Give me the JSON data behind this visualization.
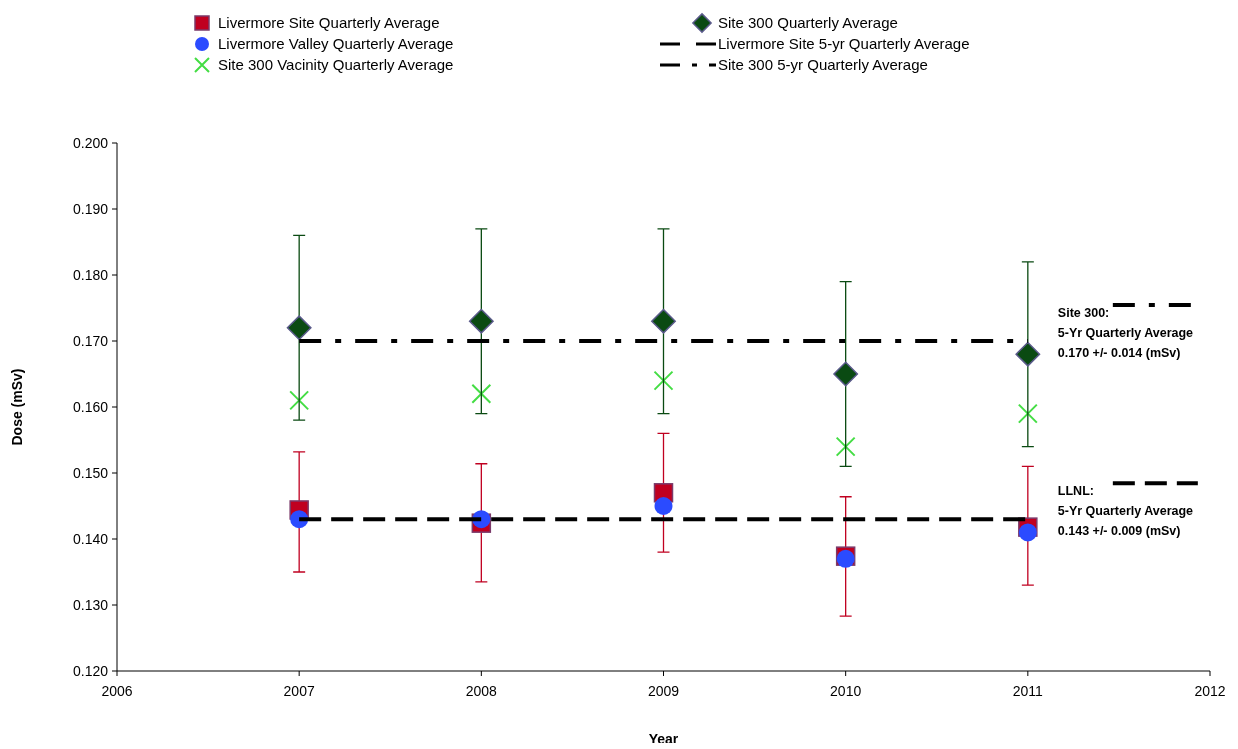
{
  "chart_data": {
    "type": "scatter",
    "xlabel": "Year",
    "ylabel": "Dose (mSv)",
    "xlim": [
      2006,
      2012
    ],
    "xticks": [
      2006,
      2007,
      2008,
      2009,
      2010,
      2011,
      2012
    ],
    "ylim": [
      0.12,
      0.2
    ],
    "yticks": [
      {
        "value": 0.12,
        "label": "0.120"
      },
      {
        "value": 0.13,
        "label": "0.130"
      },
      {
        "value": 0.14,
        "label": "0.140"
      },
      {
        "value": 0.15,
        "label": "0.150"
      },
      {
        "value": 0.16,
        "label": "0.160"
      },
      {
        "value": 0.17,
        "label": "0.170"
      },
      {
        "value": 0.18,
        "label": "0.180"
      },
      {
        "value": 0.19,
        "label": "0.190"
      },
      {
        "value": 0.2,
        "label": "0.200"
      }
    ],
    "legend": "top",
    "grid": false,
    "x": [
      2007,
      2008,
      2009,
      2010,
      2011
    ],
    "series": [
      {
        "name": "Livermore Site Quarterly Average",
        "color": "#c00020",
        "marker": "square",
        "values": [
          0.1444,
          0.1424,
          0.147,
          0.1374,
          0.1418
        ],
        "errors": [
          [
            0.135,
            0.1532
          ],
          [
            0.1335,
            0.1514
          ],
          [
            0.138,
            0.156
          ],
          [
            0.1283,
            0.1464
          ],
          [
            0.133,
            0.151
          ]
        ]
      },
      {
        "name": "Livermore Valley Quarterly Average",
        "color": "#2b4bff",
        "marker": "circle",
        "values": [
          0.143,
          0.143,
          0.145,
          0.137,
          0.141
        ]
      },
      {
        "name": "Site 300 Vacinity Quarterly Average",
        "color": "#44dd44",
        "marker": "cross",
        "values": [
          0.161,
          0.162,
          0.164,
          0.154,
          0.159
        ]
      },
      {
        "name": "Site 300 Quarterly Average",
        "color": "#0a4a12",
        "marker": "diamond",
        "values": [
          0.172,
          0.173,
          0.173,
          0.165,
          0.168
        ],
        "errors": [
          [
            0.158,
            0.186
          ],
          [
            0.159,
            0.187
          ],
          [
            0.159,
            0.187
          ],
          [
            0.151,
            0.179
          ],
          [
            0.154,
            0.182
          ]
        ]
      },
      {
        "name": "Livermore Site 5-yr Quarterly Average",
        "type": "line",
        "color": "#000000",
        "marker": "none",
        "line_style": "dashed",
        "values": [
          0.143,
          0.143,
          0.143,
          0.143,
          0.143
        ]
      },
      {
        "name": "Site 300 5-yr Quarterly Average",
        "type": "line",
        "color": "#000000",
        "marker": "none",
        "line_style": "dashdot",
        "values": [
          0.17,
          0.17,
          0.17,
          0.17,
          0.17
        ]
      }
    ],
    "annotations": [
      {
        "text": "Site 300:\n5-Yr Quarterly Average\n0.170  +/- 0.014  (mSv)",
        "x": 2011,
        "y": 0.17
      },
      {
        "text": "LLNL:\n5-Yr Quarterly Average\n0.143  +/- 0.009  (mSv)",
        "x": 2011,
        "y": 0.143
      }
    ]
  }
}
